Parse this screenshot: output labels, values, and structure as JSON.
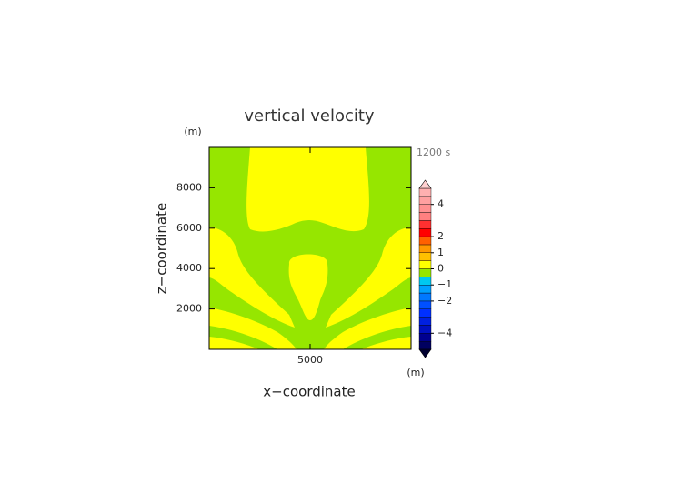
{
  "chart_data": {
    "type": "contour",
    "title": "vertical velocity",
    "x_label": "x−coordinate",
    "y_label": "z−coordinate",
    "x_unit": "(m)",
    "y_unit": "(m)",
    "time_label": "1200 s",
    "xlim": [
      0,
      10000
    ],
    "ylim": [
      0,
      10000
    ],
    "xticks": [
      5000
    ],
    "yticks": [
      2000,
      4000,
      6000,
      8000
    ],
    "colorbar": {
      "lim": [
        -5,
        5
      ],
      "levels": [
        -5,
        -4.5,
        -4,
        -3.5,
        -3,
        -2.5,
        -2,
        -1.5,
        -1,
        -0.5,
        0,
        0.5,
        1,
        1.5,
        2,
        2.5,
        3,
        3.5,
        4,
        4.5,
        5
      ],
      "colors": [
        "#000060",
        "#000090",
        "#0010c0",
        "#0020e0",
        "#0030ff",
        "#0050ff",
        "#0078ff",
        "#00a0ff",
        "#00c8f0",
        "#96e600",
        "#ffff00",
        "#ffc000",
        "#ff9800",
        "#ff6000",
        "#ff0000",
        "#ff3030",
        "#ff8080",
        "#ff9090",
        "#ffa0a0",
        "#ffb0b0"
      ],
      "over_color": "#ffd0d0",
      "under_color": "#000030",
      "ticks": [
        {
          "value": -4,
          "label": "−4"
        },
        {
          "value": -2,
          "label": "−2"
        },
        {
          "value": -1,
          "label": "−1"
        },
        0,
        1,
        2,
        4
      ]
    }
  }
}
